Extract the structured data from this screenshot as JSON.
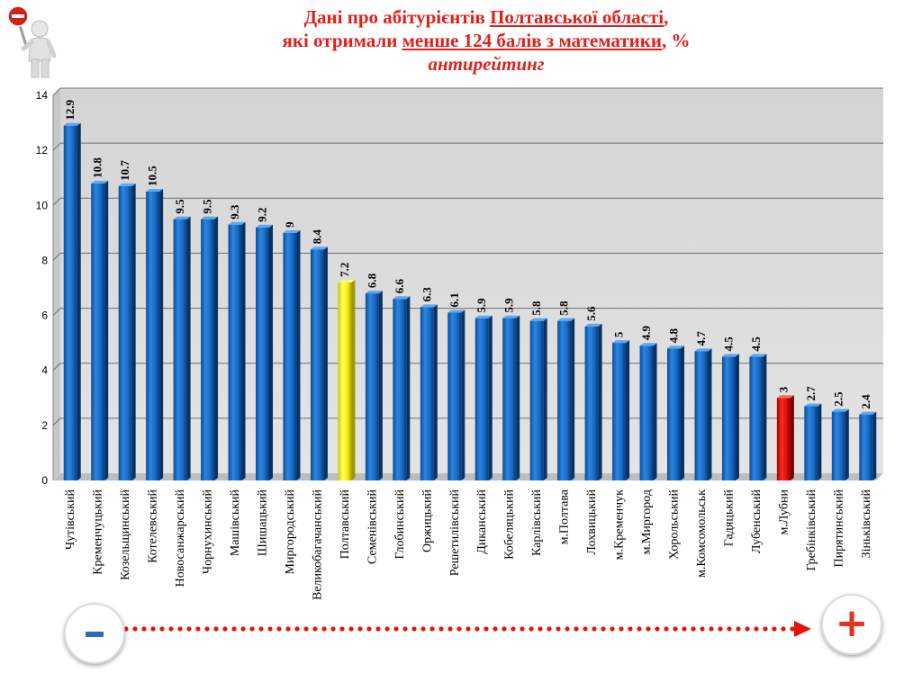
{
  "header": {
    "line1_prefix": "Дані про абітурієнтів ",
    "line1_underlined": "Полтавської  області",
    "line1_suffix": ",",
    "line2_prefix": "які отримали ",
    "line2_underlined": "менше 124 балів  з математики",
    "line2_suffix": ", %",
    "line3": "антирейтинг"
  },
  "legend": {
    "minus": "-",
    "plus": "+"
  },
  "colors": {
    "default_bar": "#1568c0",
    "highlight_oblast": "#ffff33",
    "highlight_city": "#e8120c",
    "arrow": "#e8120c"
  },
  "chart_data": {
    "type": "bar",
    "ylim": [
      0,
      14
    ],
    "yticks": [
      0,
      2,
      4,
      6,
      8,
      10,
      12,
      14
    ],
    "grid": true,
    "categories": [
      "Чутівський",
      "Кременчуцький",
      "Козельщинський",
      "Котелевський",
      "Новосанжарський",
      "Чорнухинський",
      "Машівський",
      "Шишацький",
      "Миргородський",
      "Великобагачанський",
      "Полтавський",
      "Семенівський",
      "Глобинський",
      "Оржицький",
      "Решетилівський",
      "Диканський",
      "Кобеляцький",
      "Карлівський",
      "м.Полтава",
      "Лохвицький",
      "м.Кременчук",
      "м.Миргород",
      "Хорольський",
      "м.Комсомольськ",
      "Гадяцький",
      "Лубенський",
      "м.Лубни",
      "Гребінківський",
      "Пирятинський",
      "Зіньківський"
    ],
    "values": [
      12.9,
      10.8,
      10.7,
      10.5,
      9.5,
      9.5,
      9.3,
      9.2,
      9,
      8.4,
      7.2,
      6.8,
      6.6,
      6.3,
      6.1,
      5.9,
      5.9,
      5.8,
      5.8,
      5.6,
      5,
      4.9,
      4.8,
      4.7,
      4.5,
      4.5,
      3,
      2.7,
      2.5,
      2.4
    ],
    "data_labels": [
      "12.9",
      "10.8",
      "10.7",
      "10.5",
      "9.5",
      "9.5",
      "9.3",
      "9.2",
      "9",
      "8.4",
      "7.2",
      "6.8",
      "6.6",
      "6.3",
      "6.1",
      "5.9",
      "5.9",
      "5.8",
      "5.8",
      "5.6",
      "5",
      "4.9",
      "4.8",
      "4.7",
      "4.5",
      "4.5",
      "3",
      "2.7",
      "2.5",
      "2.4"
    ],
    "highlight": {
      "Полтавський": "yellow",
      "м.Лубни": "red"
    }
  }
}
